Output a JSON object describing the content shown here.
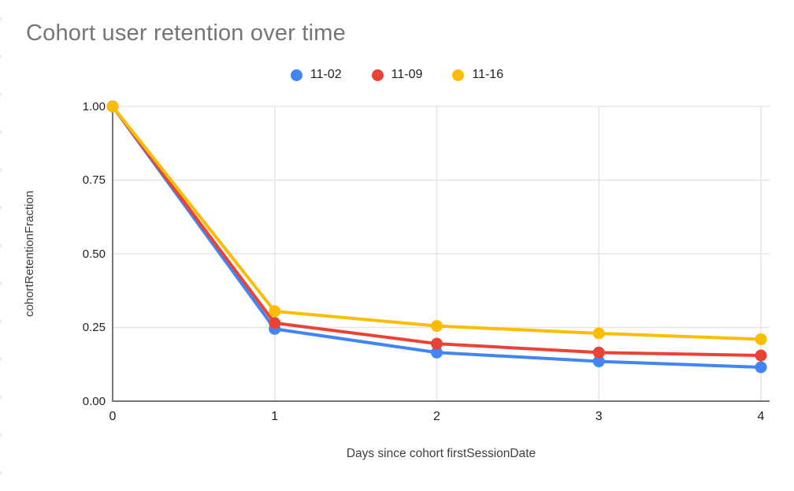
{
  "chart_data": {
    "type": "line",
    "title": "Cohort user retention over time",
    "xlabel": "Days since cohort firstSessionDate",
    "ylabel": "cohortRetentionFraction",
    "x": [
      0,
      1,
      2,
      3,
      4
    ],
    "xtick_labels": [
      "0",
      "1",
      "2",
      "3",
      "4"
    ],
    "ytick_labels": [
      "0.00",
      "0.25",
      "0.50",
      "0.75",
      "1.00"
    ],
    "ytick_values": [
      0,
      0.25,
      0.5,
      0.75,
      1.0
    ],
    "ylim": [
      0,
      1
    ],
    "xlim": [
      0,
      4
    ],
    "grid": true,
    "legend_position": "top",
    "series": [
      {
        "name": "11-02",
        "color": "#4285F4",
        "values": [
          1.0,
          0.245,
          0.165,
          0.135,
          0.115
        ]
      },
      {
        "name": "11-09",
        "color": "#EA4335",
        "values": [
          1.0,
          0.265,
          0.195,
          0.165,
          0.155
        ]
      },
      {
        "name": "11-16",
        "color": "#FBBC04",
        "values": [
          1.0,
          0.305,
          0.255,
          0.23,
          0.21
        ]
      }
    ],
    "colors": {
      "title_text": "#757575",
      "axis_line": "#757575",
      "gridline": "#e6e6e6",
      "tick_text": "#1f1f1f",
      "axis_title_text": "#3c4043",
      "background": "#ffffff"
    }
  }
}
